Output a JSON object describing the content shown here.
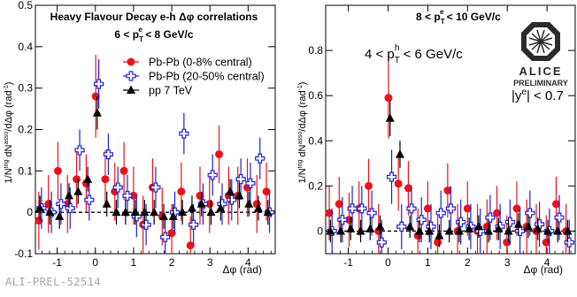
{
  "footer_label": "ALI-PREL-52514",
  "colors": {
    "pbpb_central": "#e8131b",
    "pbpb_semi": "#1f1fd6",
    "pp": "#000000"
  },
  "chart_data": [
    {
      "type": "scatter",
      "title": "Heavy Flavour Decay e-h Δφ correlations",
      "subtitle": "6 < pT^e < 8 GeV/c",
      "xlabel": "Δφ (rad)",
      "ylabel": "1/N^trig dN^asso/dΔφ (rad⁻¹)",
      "xlim": [
        -1.57,
        4.71
      ],
      "ylim": [
        -0.1,
        0.5
      ],
      "xticks": [
        -1,
        0,
        1,
        2,
        3,
        4
      ],
      "yticks": [
        -0.1,
        0,
        0.1,
        0.2,
        0.3,
        0.4,
        0.5
      ],
      "grid": false,
      "legend_position": "top-right",
      "baseline": 0,
      "series": [
        {
          "name": "Pb-Pb (0-8% central)",
          "marker": "circle",
          "color": "#e8131b",
          "x": [
            -1.48,
            -1.23,
            -0.98,
            -0.73,
            -0.49,
            -0.24,
            0.01,
            0.26,
            0.51,
            0.75,
            1.0,
            1.25,
            1.5,
            1.75,
            2.0,
            2.25,
            2.49,
            2.74,
            2.99,
            3.24,
            3.49,
            3.73,
            3.98,
            4.23,
            4.48
          ],
          "y": [
            -0.02,
            0.02,
            0.1,
            0.02,
            0.08,
            0.07,
            0.28,
            0.08,
            0.05,
            0.1,
            0.04,
            -0.03,
            0.06,
            -0.01,
            -0.05,
            0.05,
            -0.08,
            0.04,
            0.02,
            0.14,
            0.04,
            0.04,
            0.06,
            0.02,
            0.05
          ],
          "err": [
            0.07,
            0.07,
            0.07,
            0.07,
            0.07,
            0.07,
            0.1,
            0.07,
            0.07,
            0.07,
            0.07,
            0.07,
            0.07,
            0.07,
            0.07,
            0.07,
            0.07,
            0.07,
            0.07,
            0.07,
            0.07,
            0.07,
            0.07,
            0.07,
            0.07
          ]
        },
        {
          "name": "Pb-Pb (20-50% central)",
          "marker": "open-cross",
          "color": "#1f1fd6",
          "x": [
            -1.41,
            -1.15,
            -0.9,
            -0.66,
            -0.41,
            -0.16,
            0.09,
            0.34,
            0.59,
            0.84,
            1.08,
            1.33,
            1.58,
            1.83,
            2.08,
            2.32,
            2.57,
            2.82,
            3.07,
            3.32,
            3.57,
            3.81,
            4.06,
            4.31,
            4.56
          ],
          "y": [
            0.01,
            0.0,
            0.02,
            0.01,
            0.15,
            0.03,
            0.31,
            0.14,
            0.06,
            0.04,
            -0.01,
            -0.03,
            0.06,
            -0.06,
            0.0,
            0.19,
            -0.03,
            0.02,
            0.09,
            0.02,
            0.03,
            0.08,
            0.07,
            0.13,
            0.0
          ],
          "err": [
            0.05,
            0.05,
            0.05,
            0.05,
            0.05,
            0.05,
            0.06,
            0.05,
            0.05,
            0.05,
            0.05,
            0.05,
            0.05,
            0.05,
            0.05,
            0.05,
            0.05,
            0.05,
            0.05,
            0.05,
            0.05,
            0.05,
            0.05,
            0.05,
            0.05
          ]
        },
        {
          "name": "pp 7 TeV",
          "marker": "triangle",
          "color": "#000000",
          "x": [
            -1.45,
            -1.19,
            -0.94,
            -0.69,
            -0.45,
            -0.2,
            0.05,
            0.3,
            0.55,
            0.79,
            1.04,
            1.29,
            1.54,
            1.79,
            2.04,
            2.28,
            2.53,
            2.78,
            3.03,
            3.28,
            3.53,
            3.77,
            4.02,
            4.27,
            4.52
          ],
          "y": [
            0.01,
            0.0,
            -0.01,
            0.04,
            0.05,
            0.08,
            0.24,
            0.02,
            0.0,
            0.0,
            0.0,
            0.0,
            0.0,
            -0.01,
            -0.01,
            0.0,
            0.01,
            0.02,
            0.0,
            0.01,
            0.05,
            0.04,
            0.02,
            0.01,
            0.0
          ],
          "err": [
            0.03,
            0.03,
            0.03,
            0.03,
            0.03,
            0.03,
            0.04,
            0.03,
            0.03,
            0.03,
            0.03,
            0.03,
            0.03,
            0.03,
            0.03,
            0.03,
            0.03,
            0.03,
            0.03,
            0.03,
            0.03,
            0.03,
            0.03,
            0.03,
            0.03
          ]
        }
      ]
    },
    {
      "type": "scatter",
      "title": "8 < pT^e < 10 GeV/c",
      "xlabel": "Δφ (rad)",
      "ylabel": "1/N^trig dN^asso/dΔφ (rad⁻¹)",
      "xlim": [
        -1.57,
        4.71
      ],
      "ylim": [
        -0.1,
        1.0
      ],
      "xticks": [
        -1,
        0,
        1,
        2,
        3,
        4
      ],
      "yticks": [
        0,
        0.2,
        0.4,
        0.6,
        0.8
      ],
      "grid": false,
      "baseline": 0,
      "annotations": [
        "4 < pT^h < 6 GeV/c",
        "|y^e| < 0.7",
        "ALICE",
        "PRELIMINARY"
      ],
      "series": [
        {
          "marker": "circle",
          "color": "#e8131b",
          "x": [
            -1.48,
            -1.23,
            -0.98,
            -0.73,
            -0.49,
            -0.24,
            0.01,
            0.26,
            0.51,
            0.75,
            1.0,
            1.25,
            1.5,
            1.75,
            2.0,
            2.25,
            2.49,
            2.74,
            2.99,
            3.24,
            3.49,
            3.73,
            3.98,
            4.23,
            4.48
          ],
          "y": [
            0.08,
            0.12,
            0.05,
            0.1,
            0.2,
            0.0,
            0.59,
            0.21,
            0.19,
            -0.02,
            0.1,
            -0.05,
            0.18,
            0.0,
            0.1,
            0.0,
            0.02,
            0.08,
            -0.05,
            0.1,
            0.02,
            0.0,
            -0.05,
            0.12,
            0.0
          ],
          "err": [
            0.12,
            0.12,
            0.12,
            0.12,
            0.12,
            0.12,
            0.18,
            0.12,
            0.12,
            0.12,
            0.12,
            0.12,
            0.12,
            0.12,
            0.12,
            0.12,
            0.12,
            0.12,
            0.12,
            0.12,
            0.12,
            0.12,
            0.12,
            0.12,
            0.12
          ]
        },
        {
          "marker": "open-cross",
          "color": "#1f1fd6",
          "x": [
            -1.41,
            -1.15,
            -0.9,
            -0.66,
            -0.41,
            -0.16,
            0.09,
            0.34,
            0.59,
            0.84,
            1.08,
            1.33,
            1.58,
            1.83,
            2.08,
            2.32,
            2.57,
            2.82,
            3.07,
            3.32,
            3.57,
            3.81,
            4.06,
            4.31,
            4.56
          ],
          "y": [
            0.0,
            0.05,
            0.1,
            0.1,
            0.08,
            -0.05,
            0.24,
            0.02,
            0.1,
            0.05,
            0.02,
            0.08,
            0.1,
            0.04,
            0.02,
            0.0,
            0.06,
            0.02,
            0.04,
            0.0,
            0.08,
            0.03,
            0.0,
            0.06,
            -0.05
          ],
          "err": [
            0.1,
            0.1,
            0.1,
            0.1,
            0.1,
            0.1,
            0.12,
            0.1,
            0.1,
            0.1,
            0.1,
            0.1,
            0.1,
            0.1,
            0.1,
            0.1,
            0.1,
            0.1,
            0.1,
            0.1,
            0.1,
            0.1,
            0.1,
            0.1,
            0.1
          ]
        },
        {
          "marker": "triangle",
          "color": "#000000",
          "x": [
            -1.45,
            -1.19,
            -0.94,
            -0.69,
            -0.45,
            -0.2,
            0.05,
            0.3,
            0.55,
            0.79,
            1.04,
            1.29,
            1.54,
            1.79,
            2.04,
            2.28,
            2.53,
            2.78,
            3.03,
            3.28,
            3.53,
            3.77,
            4.02,
            4.27,
            4.52
          ],
          "y": [
            0.0,
            0.0,
            0.01,
            0.0,
            0.01,
            0.02,
            0.5,
            0.34,
            0.02,
            0.0,
            0.0,
            -0.02,
            0.0,
            0.0,
            0.01,
            0.02,
            0.0,
            0.01,
            0.0,
            0.03,
            0.02,
            0.01,
            0.0,
            0.0,
            0.0
          ],
          "err": [
            0.05,
            0.05,
            0.05,
            0.05,
            0.05,
            0.05,
            0.08,
            0.06,
            0.05,
            0.05,
            0.05,
            0.05,
            0.05,
            0.05,
            0.05,
            0.05,
            0.05,
            0.05,
            0.05,
            0.05,
            0.05,
            0.05,
            0.05,
            0.05,
            0.05
          ]
        }
      ]
    }
  ]
}
